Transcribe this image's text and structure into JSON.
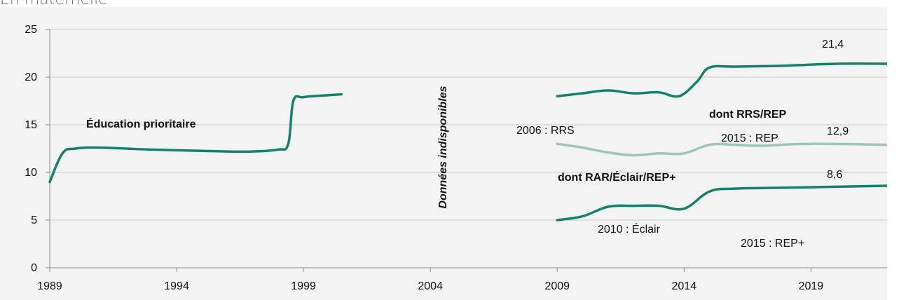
{
  "header": {
    "label": "En maternelle"
  },
  "colors": {
    "main_series": "#14826b",
    "rrs_series": "#9fc6b5",
    "background": "#f3f3f3",
    "grid": "#c8c8c8"
  },
  "chart_data": {
    "type": "line",
    "title": "",
    "xlabel": "",
    "ylabel": "",
    "xlim": [
      1989,
      2022
    ],
    "ylim": [
      0,
      25
    ],
    "x_ticks": [
      1989,
      1994,
      1999,
      2004,
      2009,
      2014,
      2019
    ],
    "y_ticks": [
      0,
      5,
      10,
      15,
      20,
      25
    ],
    "grid": "horizontal",
    "series": [
      {
        "name": "Éducation prioritaire",
        "segment": 1,
        "x": [
          1989,
          1989.5,
          1990,
          1991,
          1993,
          1996,
          1997,
          1998,
          1998.4,
          1998.6,
          1999,
          2000,
          2000.5
        ],
        "y": [
          9.0,
          12.0,
          12.5,
          12.6,
          12.4,
          12.2,
          12.2,
          12.4,
          13.0,
          17.5,
          17.9,
          18.1,
          18.2
        ]
      },
      {
        "name": "Éducation prioritaire",
        "segment": 2,
        "x": [
          2009,
          2010,
          2011,
          2012,
          2013,
          2013.8,
          2014.5,
          2015,
          2016,
          2018,
          2020,
          2022
        ],
        "y": [
          18.0,
          18.3,
          18.6,
          18.3,
          18.4,
          18.0,
          19.5,
          21.0,
          21.1,
          21.2,
          21.4,
          21.4
        ]
      },
      {
        "name": "dont RRS/REP",
        "x": [
          2009,
          2010,
          2011,
          2012,
          2013,
          2014,
          2015,
          2016,
          2017,
          2019,
          2022
        ],
        "y": [
          13.0,
          12.6,
          12.1,
          11.8,
          12.0,
          12.0,
          12.9,
          12.9,
          12.8,
          13.0,
          12.9
        ]
      },
      {
        "name": "dont RAR/Éclair/REP+",
        "x": [
          2009,
          2010,
          2011,
          2012,
          2013,
          2014,
          2015,
          2016,
          2018,
          2020,
          2022
        ],
        "y": [
          5.0,
          5.4,
          6.4,
          6.5,
          6.5,
          6.2,
          8.0,
          8.3,
          8.4,
          8.5,
          8.6
        ]
      }
    ],
    "annotations": [
      {
        "text": "Éducation prioritaire",
        "bold": true
      },
      {
        "text": "Données indisponibles",
        "bold": true,
        "italic": true,
        "rotated": true
      },
      {
        "text": "21,4"
      },
      {
        "text": "dont RRS/REP",
        "bold": true
      },
      {
        "text": "2006 : RRS"
      },
      {
        "text": "2015 : REP"
      },
      {
        "text": "12,9"
      },
      {
        "text": "dont RAR/Éclair/REP+",
        "bold": true
      },
      {
        "text": "8,6"
      },
      {
        "text": "2010 : Éclair"
      },
      {
        "text": "2015 : REP+"
      }
    ]
  }
}
